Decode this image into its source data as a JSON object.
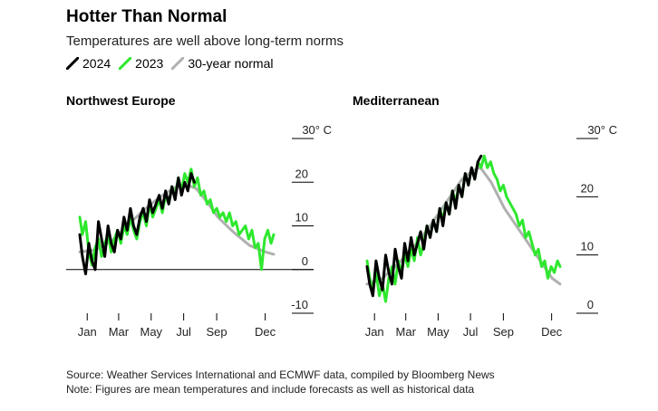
{
  "header": {
    "title": "Hotter Than Normal",
    "subtitle": "Temperatures are well above long-term norms"
  },
  "legend": [
    {
      "label": "2024",
      "color": "#000000"
    },
    {
      "label": "2023",
      "color": "#2ee82e"
    },
    {
      "label": "30-year normal",
      "color": "#b0b0b0"
    }
  ],
  "footer": {
    "source": "Source: Weather Services International and ECMWF data, compiled by Bloomberg News",
    "note": "Note: Figures are mean temperatures and include forecasts as well as historical data"
  },
  "chart_data": [
    {
      "type": "line",
      "title": "Northwest Europe",
      "unit_label": "30° C",
      "ylim": [
        -10,
        30
      ],
      "yticks": [
        -10,
        0,
        10,
        20,
        30
      ],
      "ytick_labels": [
        "-10",
        "0",
        "10",
        "20",
        "30° C"
      ],
      "zero_line": true,
      "xlim": [
        1,
        365
      ],
      "xticks": [
        15,
        74,
        135,
        196,
        258,
        349
      ],
      "xtick_labels": [
        "Jan",
        "Mar",
        "May",
        "Jul",
        "Sep",
        "Dec"
      ],
      "series": [
        {
          "name": "30-year normal",
          "color": "#b0b0b0",
          "x": [
            1,
            30,
            60,
            90,
            120,
            150,
            180,
            200,
            220,
            240,
            260,
            290,
            320,
            350,
            365
          ],
          "y": [
            4,
            4.5,
            6.5,
            10,
            13.5,
            16.5,
            18.8,
            19.5,
            18.5,
            15.5,
            12,
            8.5,
            5.5,
            4,
            3.5
          ]
        },
        {
          "name": "2023",
          "color": "#2ee82e",
          "x": [
            1,
            6,
            12,
            18,
            24,
            30,
            36,
            42,
            48,
            54,
            60,
            66,
            72,
            78,
            84,
            90,
            96,
            102,
            108,
            114,
            120,
            126,
            132,
            138,
            144,
            150,
            156,
            162,
            168,
            174,
            180,
            186,
            192,
            198,
            204,
            210,
            216,
            222,
            228,
            234,
            240,
            246,
            252,
            258,
            264,
            270,
            276,
            282,
            288,
            294,
            300,
            306,
            312,
            318,
            324,
            330,
            336,
            342,
            348,
            354,
            360,
            365
          ],
          "y": [
            12,
            8,
            11,
            4,
            1,
            5,
            7,
            3,
            6,
            8,
            4,
            7,
            9,
            6,
            10,
            8,
            12,
            9,
            7,
            11,
            13,
            10,
            15,
            12,
            14,
            16,
            13,
            17,
            15,
            19,
            17,
            21,
            18,
            22,
            20,
            23,
            19,
            21,
            17,
            18,
            15,
            16,
            13,
            14,
            12,
            13,
            11,
            13,
            10,
            11,
            8,
            9,
            10,
            7,
            9,
            5,
            6,
            0,
            7,
            9,
            6,
            8
          ]
        },
        {
          "name": "2024",
          "color": "#000000",
          "x": [
            1,
            6,
            12,
            18,
            24,
            30,
            36,
            42,
            48,
            54,
            60,
            66,
            72,
            78,
            84,
            90,
            96,
            102,
            108,
            114,
            120,
            126,
            132,
            138,
            144,
            150,
            156,
            162,
            168,
            174,
            180,
            186,
            192,
            198,
            204,
            210,
            216
          ],
          "y": [
            8,
            3,
            -1,
            6,
            2,
            0,
            11,
            7,
            3,
            10,
            6,
            4,
            9,
            7,
            12,
            9,
            14,
            10,
            8,
            12,
            14,
            11,
            16,
            13,
            15,
            17,
            14,
            18,
            15,
            19,
            16,
            21,
            17,
            20,
            18,
            22,
            20
          ]
        }
      ]
    },
    {
      "type": "line",
      "title": "Mediterranean",
      "unit_label": "30° C",
      "ylim": [
        0,
        30
      ],
      "yticks": [
        0,
        10,
        20,
        30
      ],
      "ytick_labels": [
        "0",
        "10",
        "20",
        "30° C"
      ],
      "zero_line": false,
      "xlim": [
        1,
        365
      ],
      "xticks": [
        15,
        74,
        135,
        196,
        258,
        349
      ],
      "xtick_labels": [
        "Jan",
        "Mar",
        "May",
        "Jul",
        "Sep",
        "Dec"
      ],
      "series": [
        {
          "name": "30-year normal",
          "color": "#b0b0b0",
          "x": [
            1,
            30,
            60,
            90,
            120,
            150,
            180,
            200,
            215,
            235,
            260,
            290,
            320,
            350,
            365
          ],
          "y": [
            5,
            6,
            8.5,
            11.5,
            15,
            19,
            23,
            24.5,
            25,
            22.5,
            18,
            14,
            10,
            6,
            5
          ]
        },
        {
          "name": "2023",
          "color": "#2ee82e",
          "x": [
            1,
            6,
            12,
            18,
            24,
            30,
            36,
            42,
            48,
            54,
            60,
            66,
            72,
            78,
            84,
            90,
            96,
            102,
            108,
            114,
            120,
            126,
            132,
            138,
            144,
            150,
            156,
            162,
            168,
            174,
            180,
            186,
            192,
            198,
            204,
            210,
            216,
            222,
            228,
            234,
            240,
            246,
            252,
            258,
            264,
            270,
            276,
            282,
            288,
            294,
            300,
            306,
            312,
            318,
            324,
            330,
            336,
            342,
            348,
            354,
            360,
            365
          ],
          "y": [
            9,
            6,
            4,
            7,
            3,
            5,
            2,
            6,
            8,
            5,
            9,
            7,
            10,
            8,
            11,
            9,
            13,
            10,
            12,
            15,
            13,
            16,
            14,
            18,
            16,
            19,
            17,
            21,
            19,
            22,
            20,
            24,
            22,
            25,
            23,
            26,
            25,
            27,
            25,
            26,
            24,
            23,
            21,
            22,
            20,
            19,
            18,
            17,
            15,
            16,
            13,
            14,
            12,
            10,
            11,
            8,
            9,
            6,
            8,
            7,
            9,
            8
          ]
        },
        {
          "name": "2024",
          "color": "#000000",
          "x": [
            1,
            6,
            12,
            18,
            24,
            30,
            36,
            42,
            48,
            54,
            60,
            66,
            72,
            78,
            84,
            90,
            96,
            102,
            108,
            114,
            120,
            126,
            132,
            138,
            144,
            150,
            156,
            162,
            168,
            174,
            180,
            186,
            192,
            198,
            204,
            210,
            216
          ],
          "y": [
            8,
            5,
            3,
            9,
            6,
            4,
            10,
            7,
            5,
            11,
            8,
            6,
            12,
            9,
            13,
            10,
            12,
            14,
            11,
            15,
            13,
            16,
            14,
            18,
            15,
            19,
            17,
            21,
            18,
            22,
            20,
            24,
            22,
            25,
            23,
            26,
            27
          ]
        }
      ]
    }
  ]
}
